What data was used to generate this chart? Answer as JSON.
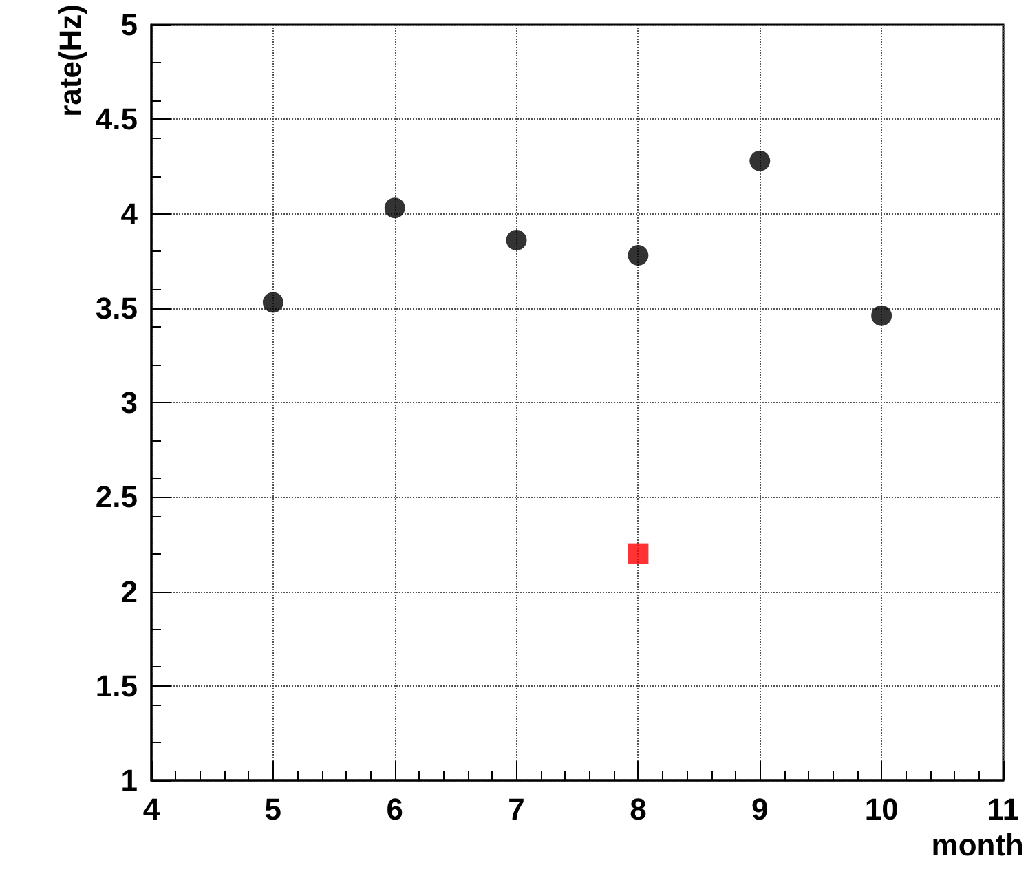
{
  "chart_data": {
    "type": "scatter",
    "xlabel": "month",
    "ylabel": "rate(Hz)",
    "xlim": [
      4,
      11
    ],
    "xticks": [
      4,
      5,
      6,
      7,
      8,
      9,
      10,
      11
    ],
    "ylim": [
      1,
      5
    ],
    "yticks": [
      1,
      1.5,
      2,
      2.5,
      3,
      3.5,
      4,
      4.5,
      5
    ],
    "grid": true,
    "series": [
      {
        "color": "#000000",
        "marker": "circle",
        "x": [
          5,
          6,
          7,
          8,
          9,
          10
        ],
        "values": [
          3.53,
          4.03,
          3.86,
          3.78,
          4.28,
          3.46
        ]
      },
      {
        "color": "#ff0000",
        "marker": "square",
        "x": [
          8
        ],
        "values": [
          2.2
        ]
      }
    ]
  }
}
